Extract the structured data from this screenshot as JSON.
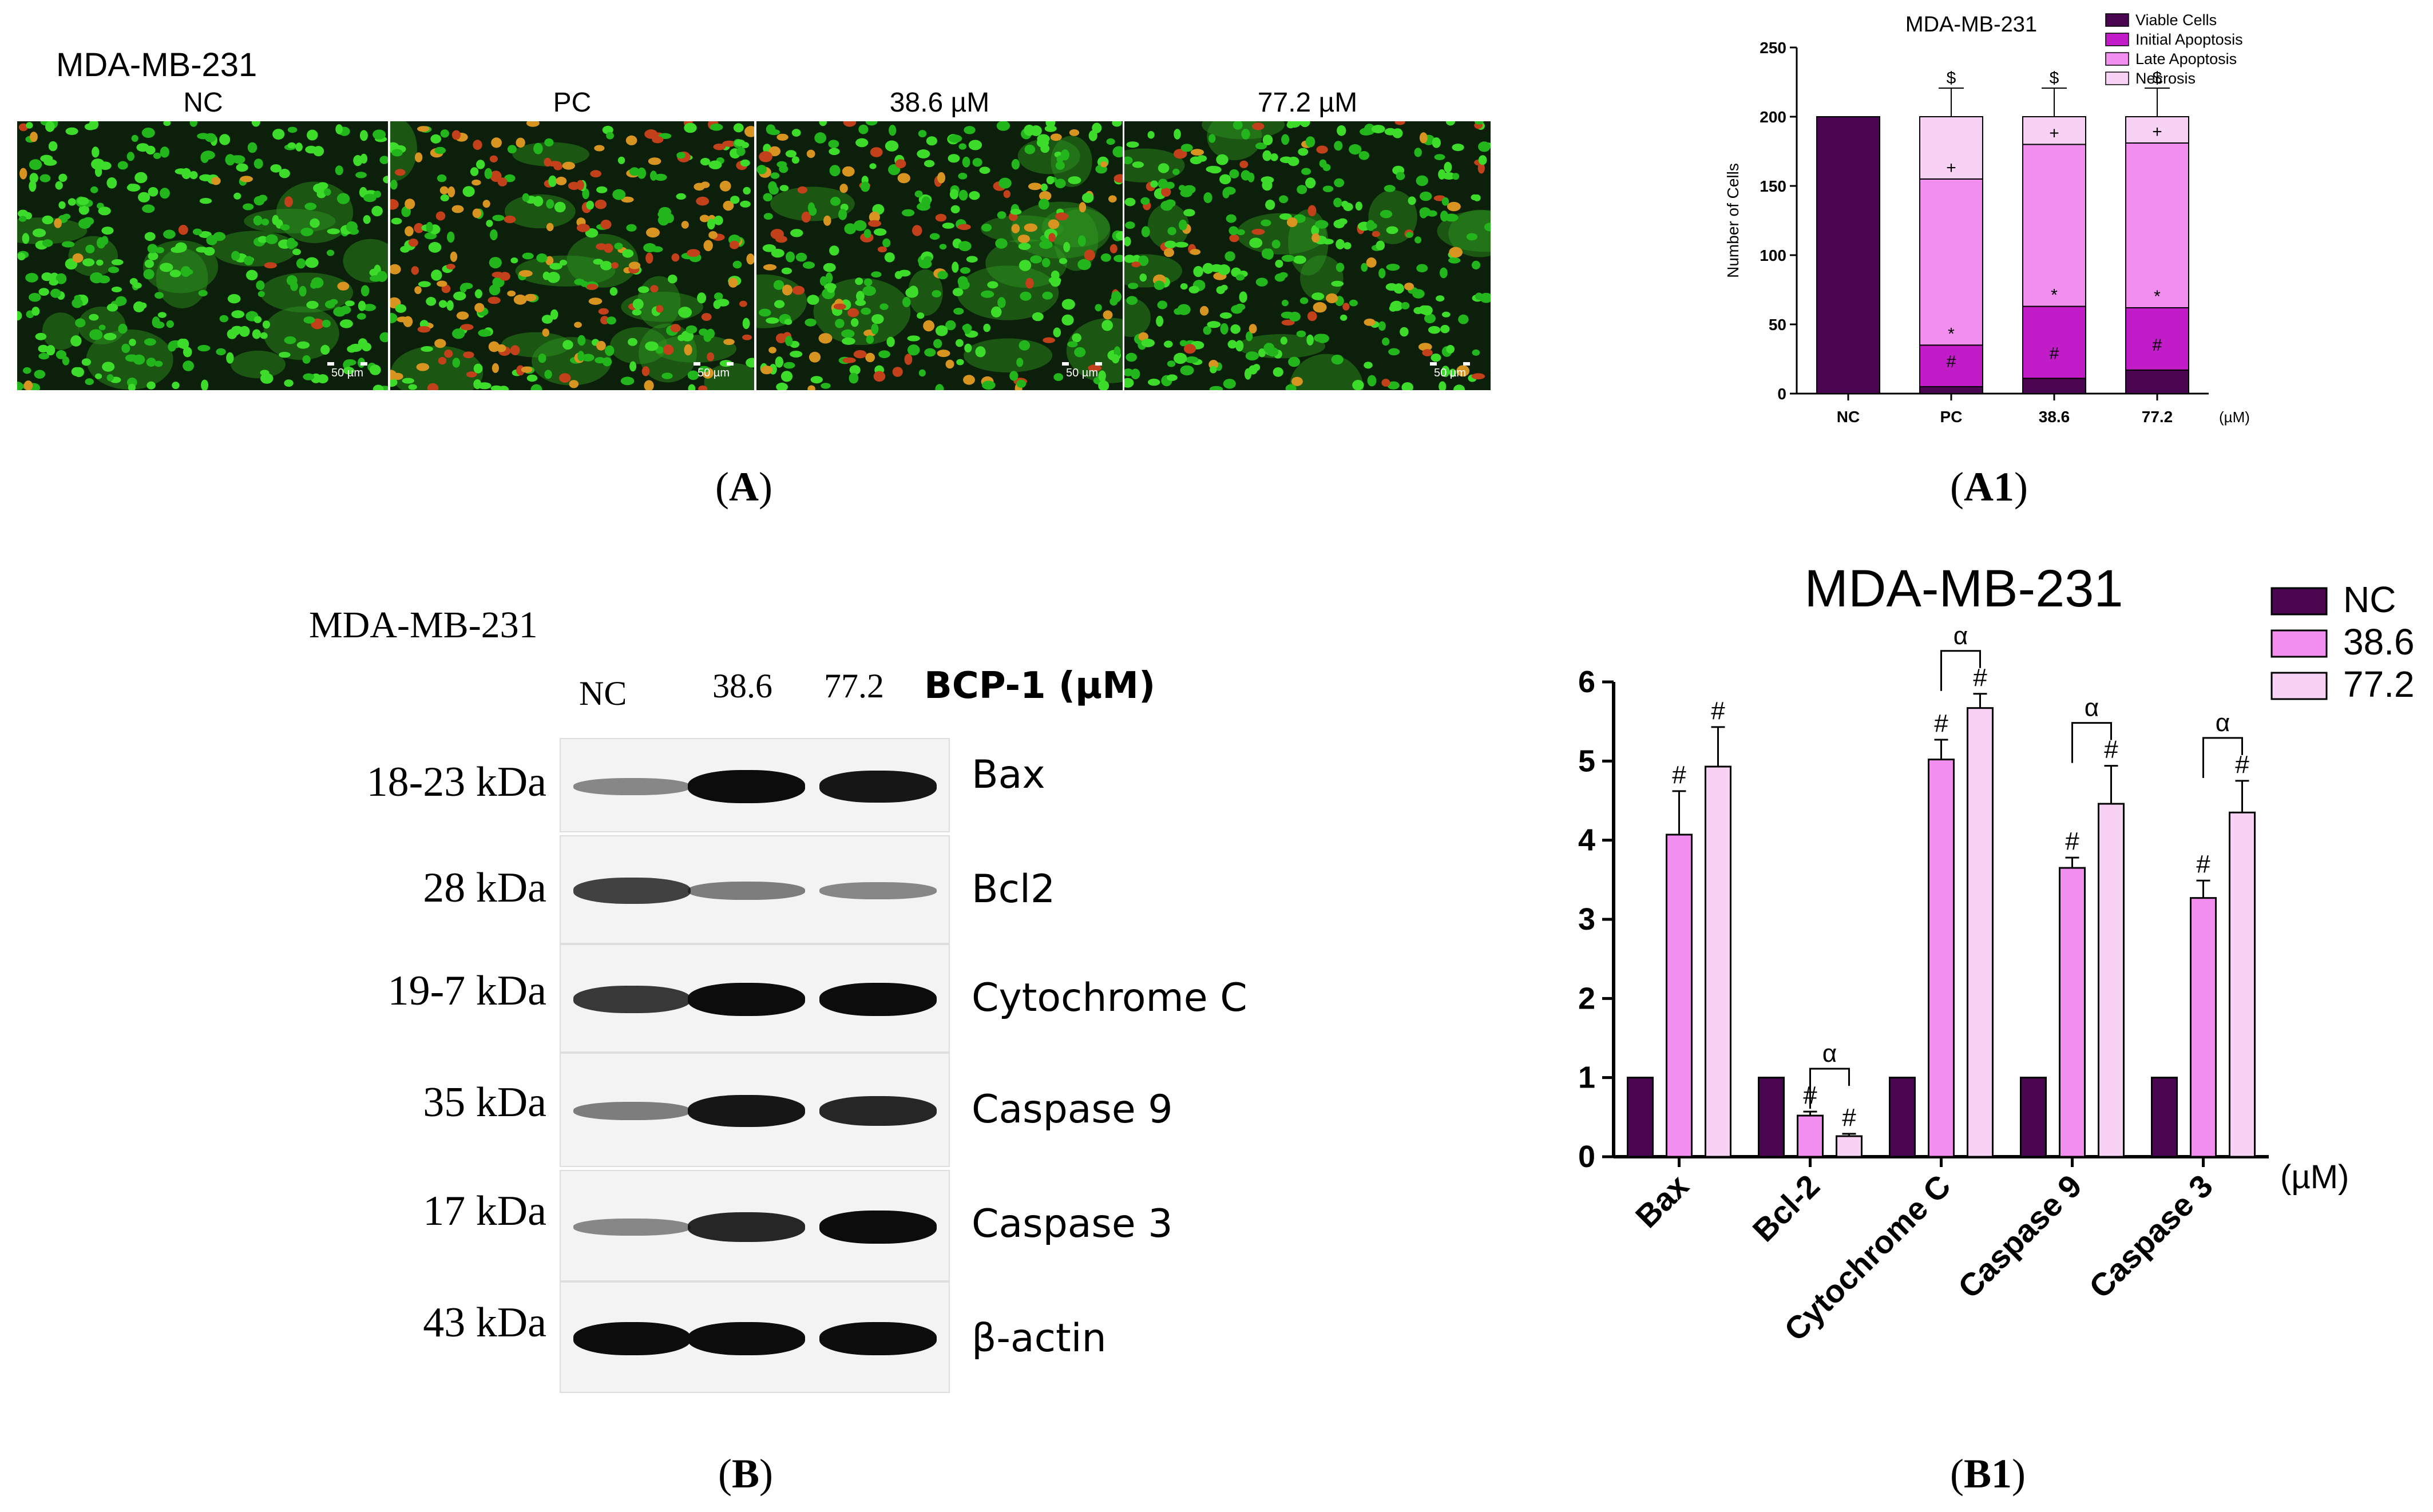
{
  "panel_a": {
    "title": "MDA-MB-231",
    "columns": [
      "NC",
      "PC",
      "38.6 µM",
      "77.2 µM"
    ],
    "scale_bar": "50 µm",
    "label": "A"
  },
  "panel_a1": {
    "label": "A1",
    "colors": {
      "viable": "#4a0550",
      "initial": "#c21cc9",
      "late": "#f28ef0",
      "necrosis": "#f8d2f4"
    }
  },
  "panel_b": {
    "label": "B",
    "title": "MDA-MB-231",
    "columns": [
      "NC",
      "38.6",
      "77.2"
    ],
    "unit": "BCP-1 (µM)",
    "rows": [
      {
        "kda": "18-23 kDa",
        "protein": "Bax"
      },
      {
        "kda": "28 kDa",
        "protein": "Bcl2"
      },
      {
        "kda": "19-7 kDa",
        "protein": "Cytochrome C"
      },
      {
        "kda": "35 kDa",
        "protein": "Caspase 9"
      },
      {
        "kda": "17 kDa",
        "protein": "Caspase 3"
      },
      {
        "kda": "43 kDa",
        "protein": "β-actin"
      }
    ]
  },
  "panel_b1": {
    "label": "B1",
    "colors": {
      "NC": "#4a0550",
      "38.6": "#f28ef0",
      "77.2": "#f8d2f4"
    }
  },
  "chart_data": [
    {
      "type": "bar",
      "stacked": true,
      "title": "MDA-MB-231",
      "xlabel": "",
      "ylabel": "Number of Cells",
      "x_unit": "(µM)",
      "categories": [
        "NC",
        "PC",
        "38.6",
        "77.2"
      ],
      "ylim": [
        0,
        250
      ],
      "yticks": [
        0,
        50,
        100,
        150,
        200,
        250
      ],
      "legend_position": "top-right",
      "series": [
        {
          "name": "Viable Cells",
          "values": [
            200,
            5,
            11,
            17
          ]
        },
        {
          "name": "Initial Apoptosis",
          "values": [
            0,
            30,
            52,
            45
          ]
        },
        {
          "name": "Late Apoptosis",
          "values": [
            0,
            120,
            117,
            119
          ]
        },
        {
          "name": "Necrosis",
          "values": [
            0,
            45,
            20,
            19
          ]
        }
      ],
      "annotations": [
        {
          "category": "PC",
          "segment": "Viable Cells",
          "text": "#"
        },
        {
          "category": "PC",
          "segment": "Initial Apoptosis",
          "text": "*"
        },
        {
          "category": "PC",
          "segment": "Late Apoptosis",
          "text": "+"
        },
        {
          "category": "PC",
          "segment": "Necrosis",
          "text": "$"
        },
        {
          "category": "38.6",
          "segment": "Viable Cells",
          "text": "#"
        },
        {
          "category": "38.6",
          "segment": "Initial Apoptosis",
          "text": "*"
        },
        {
          "category": "38.6",
          "segment": "Late Apoptosis",
          "text": "+"
        },
        {
          "category": "38.6",
          "segment": "Necrosis",
          "text": "$"
        },
        {
          "category": "77.2",
          "segment": "Viable Cells",
          "text": "#"
        },
        {
          "category": "77.2",
          "segment": "Initial Apoptosis",
          "text": "*"
        },
        {
          "category": "77.2",
          "segment": "Late Apoptosis",
          "text": "+"
        },
        {
          "category": "77.2",
          "segment": "Necrosis",
          "text": "$"
        }
      ]
    },
    {
      "type": "bar",
      "title": "MDA-MB-231",
      "xlabel": "",
      "ylabel": "",
      "x_unit": "(µM)",
      "categories": [
        "Bax",
        "Bcl-2",
        "Cytochrome C",
        "Caspase 9",
        "Caspase 3"
      ],
      "ylim": [
        0,
        6
      ],
      "yticks": [
        0,
        1,
        2,
        3,
        4,
        5,
        6
      ],
      "legend_position": "top-right",
      "series": [
        {
          "name": "NC",
          "values": [
            1,
            1,
            1,
            1,
            1
          ],
          "errors": [
            0,
            0,
            0,
            0,
            0
          ]
        },
        {
          "name": "38.6",
          "values": [
            4.07,
            0.52,
            5.02,
            3.65,
            3.27
          ],
          "errors": [
            0.55,
            0.05,
            0.25,
            0.13,
            0.22
          ]
        },
        {
          "name": "77.2",
          "values": [
            4.93,
            0.26,
            5.67,
            4.46,
            4.35
          ],
          "errors": [
            0.5,
            0.03,
            0.18,
            0.48,
            0.4
          ]
        }
      ],
      "markers": {
        "38.6": [
          "#",
          "#",
          "#",
          "#",
          "#"
        ],
        "77.2": [
          "#",
          "#",
          "#",
          "#",
          "#"
        ]
      },
      "brackets": [
        {
          "category": "Bcl-2",
          "text": "α"
        },
        {
          "category": "Cytochrome C",
          "text": "α"
        },
        {
          "category": "Caspase 9",
          "text": "α"
        },
        {
          "category": "Caspase 3",
          "text": "α"
        }
      ]
    }
  ]
}
